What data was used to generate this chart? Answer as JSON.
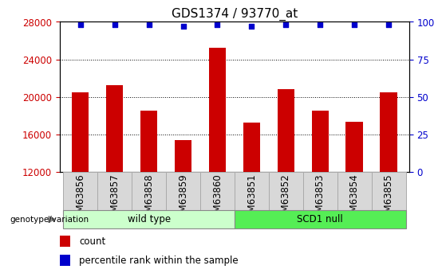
{
  "title": "GDS1374 / 93770_at",
  "samples": [
    "GSM63856",
    "GSM63857",
    "GSM63858",
    "GSM63859",
    "GSM63860",
    "GSM63851",
    "GSM63852",
    "GSM63853",
    "GSM63854",
    "GSM63855"
  ],
  "counts": [
    20500,
    21200,
    18500,
    15400,
    25200,
    17200,
    20800,
    18500,
    17300,
    20500
  ],
  "percentile_ranks": [
    98,
    98,
    98,
    97,
    98,
    97,
    98,
    98,
    98,
    98
  ],
  "ylim_left": [
    12000,
    28000
  ],
  "yticks_left": [
    12000,
    16000,
    20000,
    24000,
    28000
  ],
  "ylim_right": [
    0,
    100
  ],
  "yticks_right": [
    0,
    25,
    50,
    75,
    100
  ],
  "bar_color": "#cc0000",
  "scatter_color": "#0000cc",
  "left_tick_color": "#cc0000",
  "right_tick_color": "#0000cc",
  "groups": [
    {
      "label": "wild type",
      "start": 0,
      "end": 5,
      "color": "#ccffcc"
    },
    {
      "label": "SCD1 null",
      "start": 5,
      "end": 10,
      "color": "#55ee55"
    }
  ],
  "group_label": "genotype/variation",
  "legend_count_label": "count",
  "legend_pct_label": "percentile rank within the sample",
  "background_color": "#ffffff",
  "bar_width": 0.5,
  "title_fontsize": 11,
  "tick_fontsize": 8.5,
  "label_fontsize": 8.5,
  "legend_fontsize": 8.5,
  "sample_box_color": "#d8d8d8",
  "sample_box_edge": "#aaaaaa"
}
